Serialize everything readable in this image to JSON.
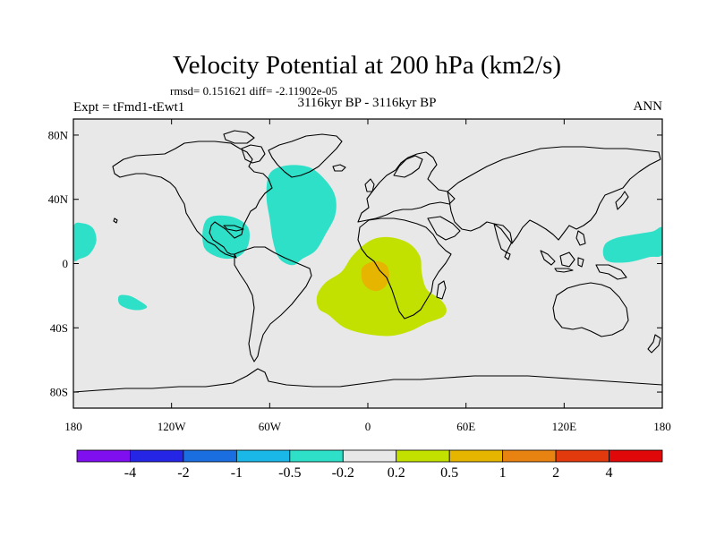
{
  "chart_data": {
    "type": "contour_map",
    "title": "Velocity Potential at 200 hPa (km2/s)",
    "stats_line": "rmsd= 0.151621 diff= -2.11902e-05",
    "left_label": "Expt = tFmd1-tEwt1",
    "center_label": "3116kyr BP - 3116kyr BP",
    "right_label": "ANN",
    "projection": "cylindrical equidistant",
    "lon_range": [
      -180,
      180
    ],
    "lat_range": [
      -90,
      90
    ],
    "x_ticks": [
      {
        "lon": -180,
        "label": "180"
      },
      {
        "lon": -120,
        "label": "120W"
      },
      {
        "lon": -60,
        "label": "60W"
      },
      {
        "lon": 0,
        "label": "0"
      },
      {
        "lon": 60,
        "label": "60E"
      },
      {
        "lon": 120,
        "label": "120E"
      },
      {
        "lon": 180,
        "label": "180"
      }
    ],
    "y_ticks": [
      {
        "lat": 80,
        "label": "80N"
      },
      {
        "lat": 40,
        "label": "40N"
      },
      {
        "lat": 0,
        "label": "0"
      },
      {
        "lat": -40,
        "label": "40S"
      },
      {
        "lat": -80,
        "label": "80S"
      }
    ],
    "colorbar": {
      "colors": [
        "#7f0fef",
        "#2525e6",
        "#1a6ee0",
        "#19b8e8",
        "#2ee0c8",
        "#e8e8e8",
        "#c3e100",
        "#e5b500",
        "#e88210",
        "#e23a0c",
        "#e00808"
      ],
      "labels": [
        "-4",
        "-2",
        "-1",
        "-0.5",
        "-0.2",
        "0.2",
        "0.5",
        "1",
        "2",
        "4"
      ]
    },
    "regions": [
      {
        "name": "north-atlantic-negative",
        "sign": "negative",
        "level": "-0.5 to -0.2",
        "color_index": 4,
        "polygon": [
          [
            -60,
            56
          ],
          [
            -50,
            61
          ],
          [
            -36,
            60
          ],
          [
            -26,
            52
          ],
          [
            -20,
            42
          ],
          [
            -20,
            30
          ],
          [
            -26,
            18
          ],
          [
            -32,
            8
          ],
          [
            -40,
            3
          ],
          [
            -46,
            -1
          ],
          [
            -54,
            3
          ],
          [
            -58,
            14
          ],
          [
            -60,
            28
          ],
          [
            -62,
            42
          ]
        ]
      },
      {
        "name": "caribbean-negative",
        "sign": "negative",
        "level": "-0.5 to -0.2",
        "color_index": 4,
        "polygon": [
          [
            -98,
            28
          ],
          [
            -90,
            30
          ],
          [
            -80,
            28
          ],
          [
            -73,
            22
          ],
          [
            -73,
            12
          ],
          [
            -78,
            5
          ],
          [
            -86,
            3
          ],
          [
            -94,
            5
          ],
          [
            -100,
            10
          ],
          [
            -101,
            20
          ]
        ]
      },
      {
        "name": "pacific-east-negative",
        "sign": "negative",
        "level": "-0.5 to -0.2",
        "color_index": 4,
        "polygon": [
          [
            -180,
            23
          ],
          [
            -174,
            25
          ],
          [
            -168,
            22
          ],
          [
            -166,
            14
          ],
          [
            -170,
            6
          ],
          [
            -176,
            3
          ],
          [
            -180,
            3
          ]
        ]
      },
      {
        "name": "south-pacific-negative",
        "sign": "negative",
        "level": "-0.5 to -0.2",
        "color_index": 4,
        "polygon": [
          [
            -152,
            -20
          ],
          [
            -146,
            -20
          ],
          [
            -140,
            -23
          ],
          [
            -135,
            -27
          ],
          [
            -140,
            -29
          ],
          [
            -147,
            -28
          ],
          [
            -152,
            -25
          ]
        ]
      },
      {
        "name": "west-pacific-negative",
        "sign": "negative",
        "level": "-0.5 to -0.2",
        "color_index": 4,
        "polygon": [
          [
            180,
            22
          ],
          [
            174,
            20
          ],
          [
            162,
            18
          ],
          [
            152,
            16
          ],
          [
            145,
            12
          ],
          [
            144,
            5
          ],
          [
            148,
            1
          ],
          [
            160,
            1
          ],
          [
            172,
            4
          ],
          [
            180,
            6
          ]
        ]
      },
      {
        "name": "africa-atlantic-positive",
        "sign": "positive",
        "level": "0.2 to 0.5",
        "color_index": 6,
        "polygon": [
          [
            -2,
            12
          ],
          [
            6,
            16
          ],
          [
            16,
            16
          ],
          [
            26,
            12
          ],
          [
            32,
            4
          ],
          [
            33,
            -6
          ],
          [
            36,
            -16
          ],
          [
            44,
            -22
          ],
          [
            48,
            -28
          ],
          [
            46,
            -33
          ],
          [
            36,
            -37
          ],
          [
            26,
            -42
          ],
          [
            14,
            -45
          ],
          [
            0,
            -44
          ],
          [
            -14,
            -40
          ],
          [
            -24,
            -32
          ],
          [
            -30,
            -28
          ],
          [
            -31,
            -20
          ],
          [
            -26,
            -12
          ],
          [
            -16,
            -5
          ],
          [
            -10,
            4
          ]
        ]
      },
      {
        "name": "south-atlantic-positive-core",
        "sign": "positive",
        "level": "0.5 to 1",
        "color_index": 7,
        "polygon": [
          [
            -3,
            -2
          ],
          [
            2,
            1
          ],
          [
            8,
            1
          ],
          [
            12,
            -2
          ],
          [
            13,
            -8
          ],
          [
            11,
            -14
          ],
          [
            6,
            -17
          ],
          [
            1,
            -16
          ],
          [
            -3,
            -12
          ],
          [
            -4,
            -6
          ]
        ]
      }
    ]
  }
}
